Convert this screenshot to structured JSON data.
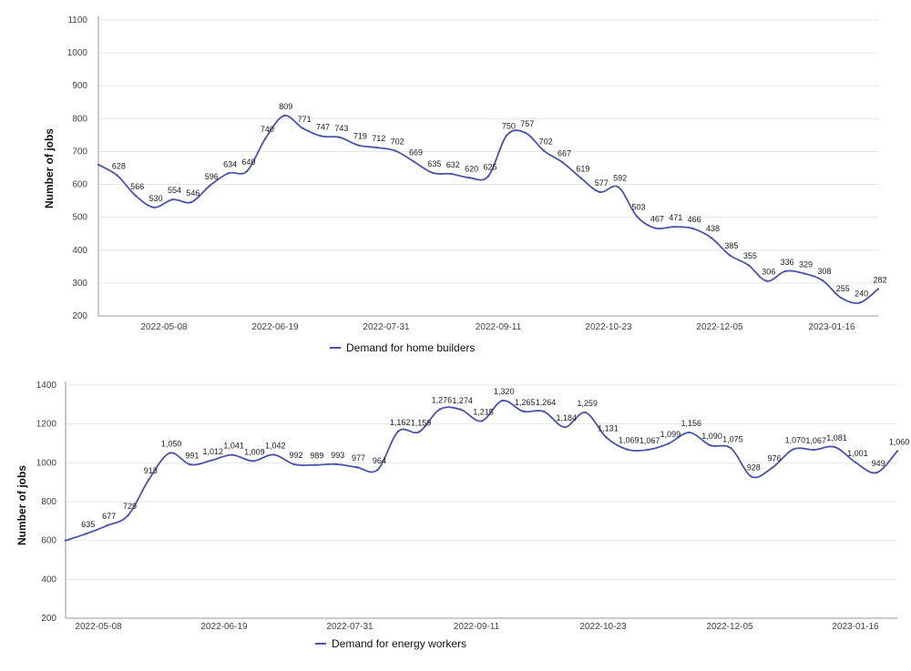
{
  "chart_data": [
    {
      "type": "line",
      "ylabel": "Number of jobs",
      "xlabel": "",
      "ylim": [
        200,
        1100
      ],
      "yticks": [
        200,
        300,
        400,
        500,
        600,
        700,
        800,
        900,
        1000,
        1100
      ],
      "xtick_labels": [
        "2022-05-08",
        "2022-06-19",
        "2022-07-31",
        "2022-09-11",
        "2022-10-23",
        "2022-12-05",
        "2023-01-16"
      ],
      "grid": true,
      "legend_position": "bottom",
      "line_color": "#4a55a8",
      "series": [
        {
          "name": "Demand for home builders",
          "values": [
            660,
            628,
            566,
            530,
            554,
            546,
            596,
            634,
            640,
            740,
            809,
            771,
            747,
            743,
            719,
            712,
            702,
            669,
            635,
            632,
            620,
            625,
            750,
            757,
            702,
            667,
            619,
            577,
            592,
            503,
            467,
            471,
            466,
            438,
            385,
            355,
            306,
            336,
            329,
            308,
            255,
            240,
            282
          ],
          "labels": [
            "",
            "628",
            "566",
            "530",
            "554",
            "546",
            "596",
            "634",
            "640",
            "740",
            "809",
            "771",
            "747",
            "743",
            "719",
            "712",
            "702",
            "669",
            "635",
            "632",
            "620",
            "625",
            "750",
            "757",
            "702",
            "667",
            "619",
            "577",
            "592",
            "503",
            "467",
            "471",
            "466",
            "438",
            "385",
            "355",
            "306",
            "336",
            "329",
            "308",
            "255",
            "240",
            "282"
          ]
        }
      ]
    },
    {
      "type": "line",
      "ylabel": "Number of jobs",
      "xlabel": "",
      "ylim": [
        200,
        1400
      ],
      "yticks": [
        200,
        400,
        600,
        800,
        1000,
        1200,
        1400
      ],
      "xtick_labels": [
        "2022-05-08",
        "2022-06-19",
        "2022-07-31",
        "2022-09-11",
        "2022-10-23",
        "2022-12-05",
        "2023-01-16"
      ],
      "grid": true,
      "legend_position": "bottom",
      "line_color": "#4a55a8",
      "series": [
        {
          "name": "Demand for energy workers",
          "values": [
            600,
            635,
            677,
            729,
            913,
            1050,
            991,
            1012,
            1041,
            1009,
            1042,
            992,
            989,
            993,
            977,
            964,
            1162,
            1159,
            1276,
            1274,
            1215,
            1320,
            1265,
            1264,
            1184,
            1259,
            1131,
            1069,
            1067,
            1099,
            1156,
            1090,
            1075,
            928,
            976,
            1070,
            1067,
            1081,
            1001,
            949,
            1060
          ],
          "labels": [
            "",
            "635",
            "677",
            "729",
            "913",
            "1,050",
            "991",
            "1,012",
            "1,041",
            "1,009",
            "1,042",
            "992",
            "989",
            "993",
            "977",
            "964",
            "1,162",
            "1,159",
            "1,276",
            "1,274",
            "1,215",
            "1,320",
            "1,265",
            "1,264",
            "1,184",
            "1,259",
            "1,131",
            "1,069",
            "1,067",
            "1,099",
            "1,156",
            "1,090",
            "1,075",
            "928",
            "976",
            "1,070",
            "1,067",
            "1,081",
            "1,001",
            "949",
            "1,060"
          ]
        }
      ]
    }
  ]
}
